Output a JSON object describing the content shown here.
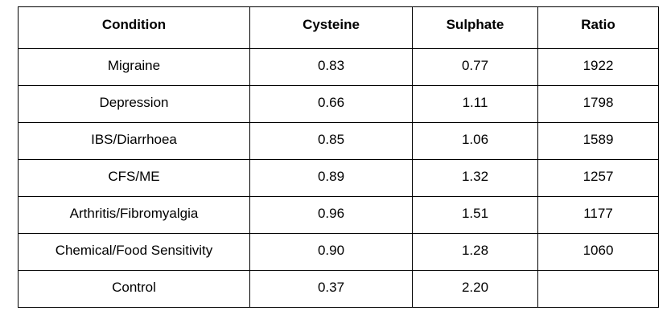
{
  "table": {
    "headers": [
      "Condition",
      "Cysteine",
      "Sulphate",
      "Ratio"
    ],
    "rows": [
      [
        "Migraine",
        "0.83",
        "0.77",
        "1922"
      ],
      [
        "Depression",
        "0.66",
        "1.11",
        "1798"
      ],
      [
        "IBS/Diarrhoea",
        "0.85",
        "1.06",
        "1589"
      ],
      [
        "CFS/ME",
        "0.89",
        "1.32",
        "1257"
      ],
      [
        "Arthritis/Fibromyalgia",
        "0.96",
        "1.51",
        "1177"
      ],
      [
        "Chemical/Food Sensitivity",
        "0.90",
        "1.28",
        "1060"
      ],
      [
        "Control",
        "0.37",
        "2.20",
        ""
      ]
    ]
  }
}
